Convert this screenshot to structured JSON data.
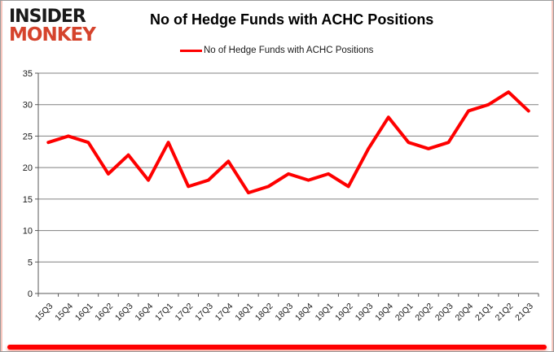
{
  "logo": {
    "line1": "INSIDER",
    "line2": "MONKEY",
    "color_line1": "#1a1a1a",
    "color_line2": "#d5432c"
  },
  "title": "No of Hedge Funds with ACHC Positions",
  "legend": {
    "label": "No of Hedge Funds with ACHC Positions"
  },
  "chart_data": {
    "type": "line",
    "title": "No of Hedge Funds with ACHC Positions",
    "categories": [
      "15Q3",
      "15Q4",
      "16Q1",
      "16Q2",
      "16Q3",
      "16Q4",
      "17Q1",
      "17Q2",
      "17Q3",
      "17Q4",
      "18Q1",
      "18Q2",
      "18Q3",
      "18Q4",
      "19Q1",
      "19Q2",
      "19Q3",
      "19Q4",
      "20Q1",
      "20Q2",
      "20Q3",
      "20Q4",
      "21Q1",
      "21Q2",
      "21Q3"
    ],
    "series": [
      {
        "name": "No of Hedge Funds with ACHC Positions",
        "color": "#fe0000",
        "values": [
          24,
          25,
          24,
          19,
          22,
          18,
          24,
          17,
          18,
          21,
          16,
          17,
          19,
          18,
          19,
          17,
          23,
          28,
          24,
          23,
          24,
          29,
          30,
          32,
          29
        ]
      }
    ],
    "xlabel": "",
    "ylabel": "",
    "ylim": [
      0,
      35
    ],
    "ytick_step": 5,
    "grid": true,
    "legend_position": "top"
  },
  "colors": {
    "grid": "#808080",
    "axis": "#595959",
    "tick_label": "#1a1a1a",
    "accent_bar": "#fe0000",
    "frame_border": "#9b9b9b",
    "inner_accent": "#f7c6bd"
  }
}
